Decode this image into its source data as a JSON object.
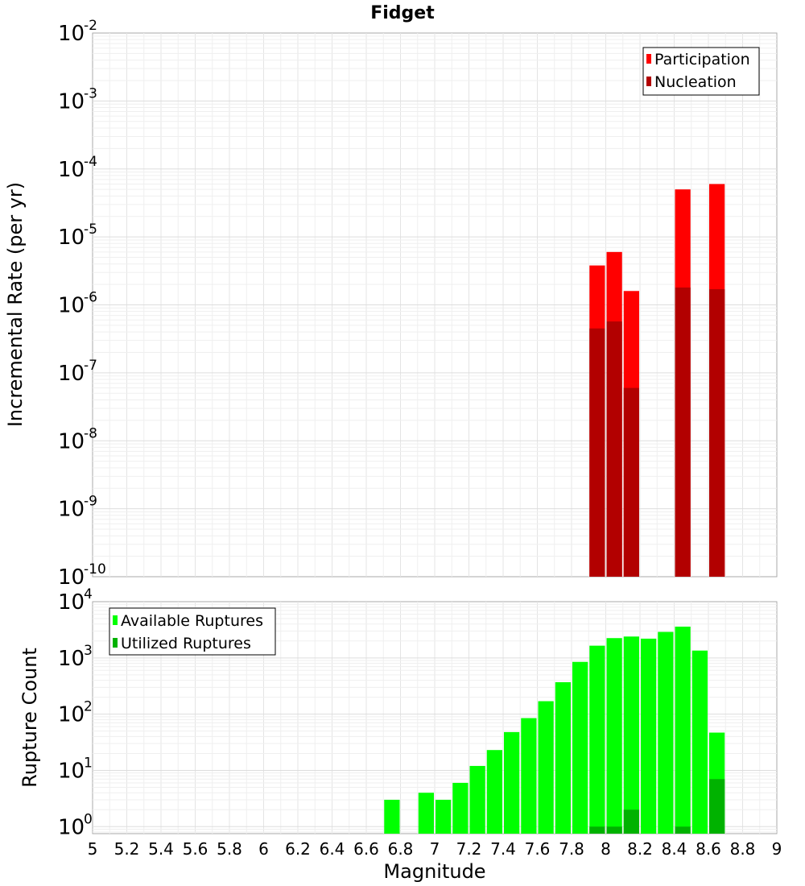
{
  "chart_data": {
    "title": "Fidget",
    "xlabel": "Magnitude",
    "xlim": [
      5,
      9
    ],
    "x_ticks": [
      5,
      5.2,
      5.4,
      5.6,
      5.8,
      6,
      6.2,
      6.4,
      6.6,
      6.8,
      7,
      7.2,
      7.4,
      7.6,
      7.8,
      8,
      8.2,
      8.4,
      8.6,
      8.8,
      9
    ],
    "bin_width": 0.1,
    "grid": true,
    "panels": [
      {
        "type": "bar",
        "scale": "log",
        "ylabel": "Incremental Rate (per yr)",
        "ylim": [
          1e-10,
          0.01
        ],
        "y_tick_exponents": [
          -10,
          -9,
          -8,
          -7,
          -6,
          -5,
          -4,
          -3,
          -2
        ],
        "legend": {
          "position": "top-right",
          "entries": [
            "Participation",
            "Nucleation"
          ]
        },
        "series": [
          {
            "name": "Participation",
            "color": "#ff0000",
            "x": [
              7.95,
              8.05,
              8.15,
              8.45,
              8.65
            ],
            "values": [
              3.8e-06,
              6e-06,
              1.6e-06,
              5e-05,
              6e-05
            ]
          },
          {
            "name": "Nucleation",
            "color": "#b20000",
            "x": [
              7.95,
              8.05,
              8.15,
              8.45,
              8.65
            ],
            "values": [
              4.5e-07,
              5.7e-07,
              6e-08,
              1.8e-06,
              1.7e-06
            ]
          }
        ]
      },
      {
        "type": "bar",
        "scale": "log",
        "ylabel": "Rupture Count",
        "ylim": [
          0.75,
          10000
        ],
        "y_tick_exponents": [
          0,
          1,
          2,
          3,
          4
        ],
        "legend": {
          "position": "top-left",
          "entries": [
            "Available Ruptures",
            "Utilized Ruptures"
          ]
        },
        "series": [
          {
            "name": "Available Ruptures",
            "color": "#00ff00",
            "x": [
              6.75,
              6.95,
              7.05,
              7.15,
              7.25,
              7.35,
              7.45,
              7.55,
              7.65,
              7.75,
              7.85,
              7.95,
              8.05,
              8.15,
              8.25,
              8.35,
              8.45,
              8.55,
              8.65
            ],
            "values": [
              3,
              4,
              3,
              6,
              12,
              23,
              48,
              85,
              170,
              370,
              850,
              1650,
              2250,
              2400,
              2200,
              2900,
              3600,
              1350,
              47
            ]
          },
          {
            "name": "Utilized Ruptures",
            "color": "#00b200",
            "x": [
              7.95,
              8.05,
              8.15,
              8.45,
              8.65
            ],
            "values": [
              1,
              1,
              2,
              1,
              7
            ]
          }
        ]
      }
    ]
  }
}
